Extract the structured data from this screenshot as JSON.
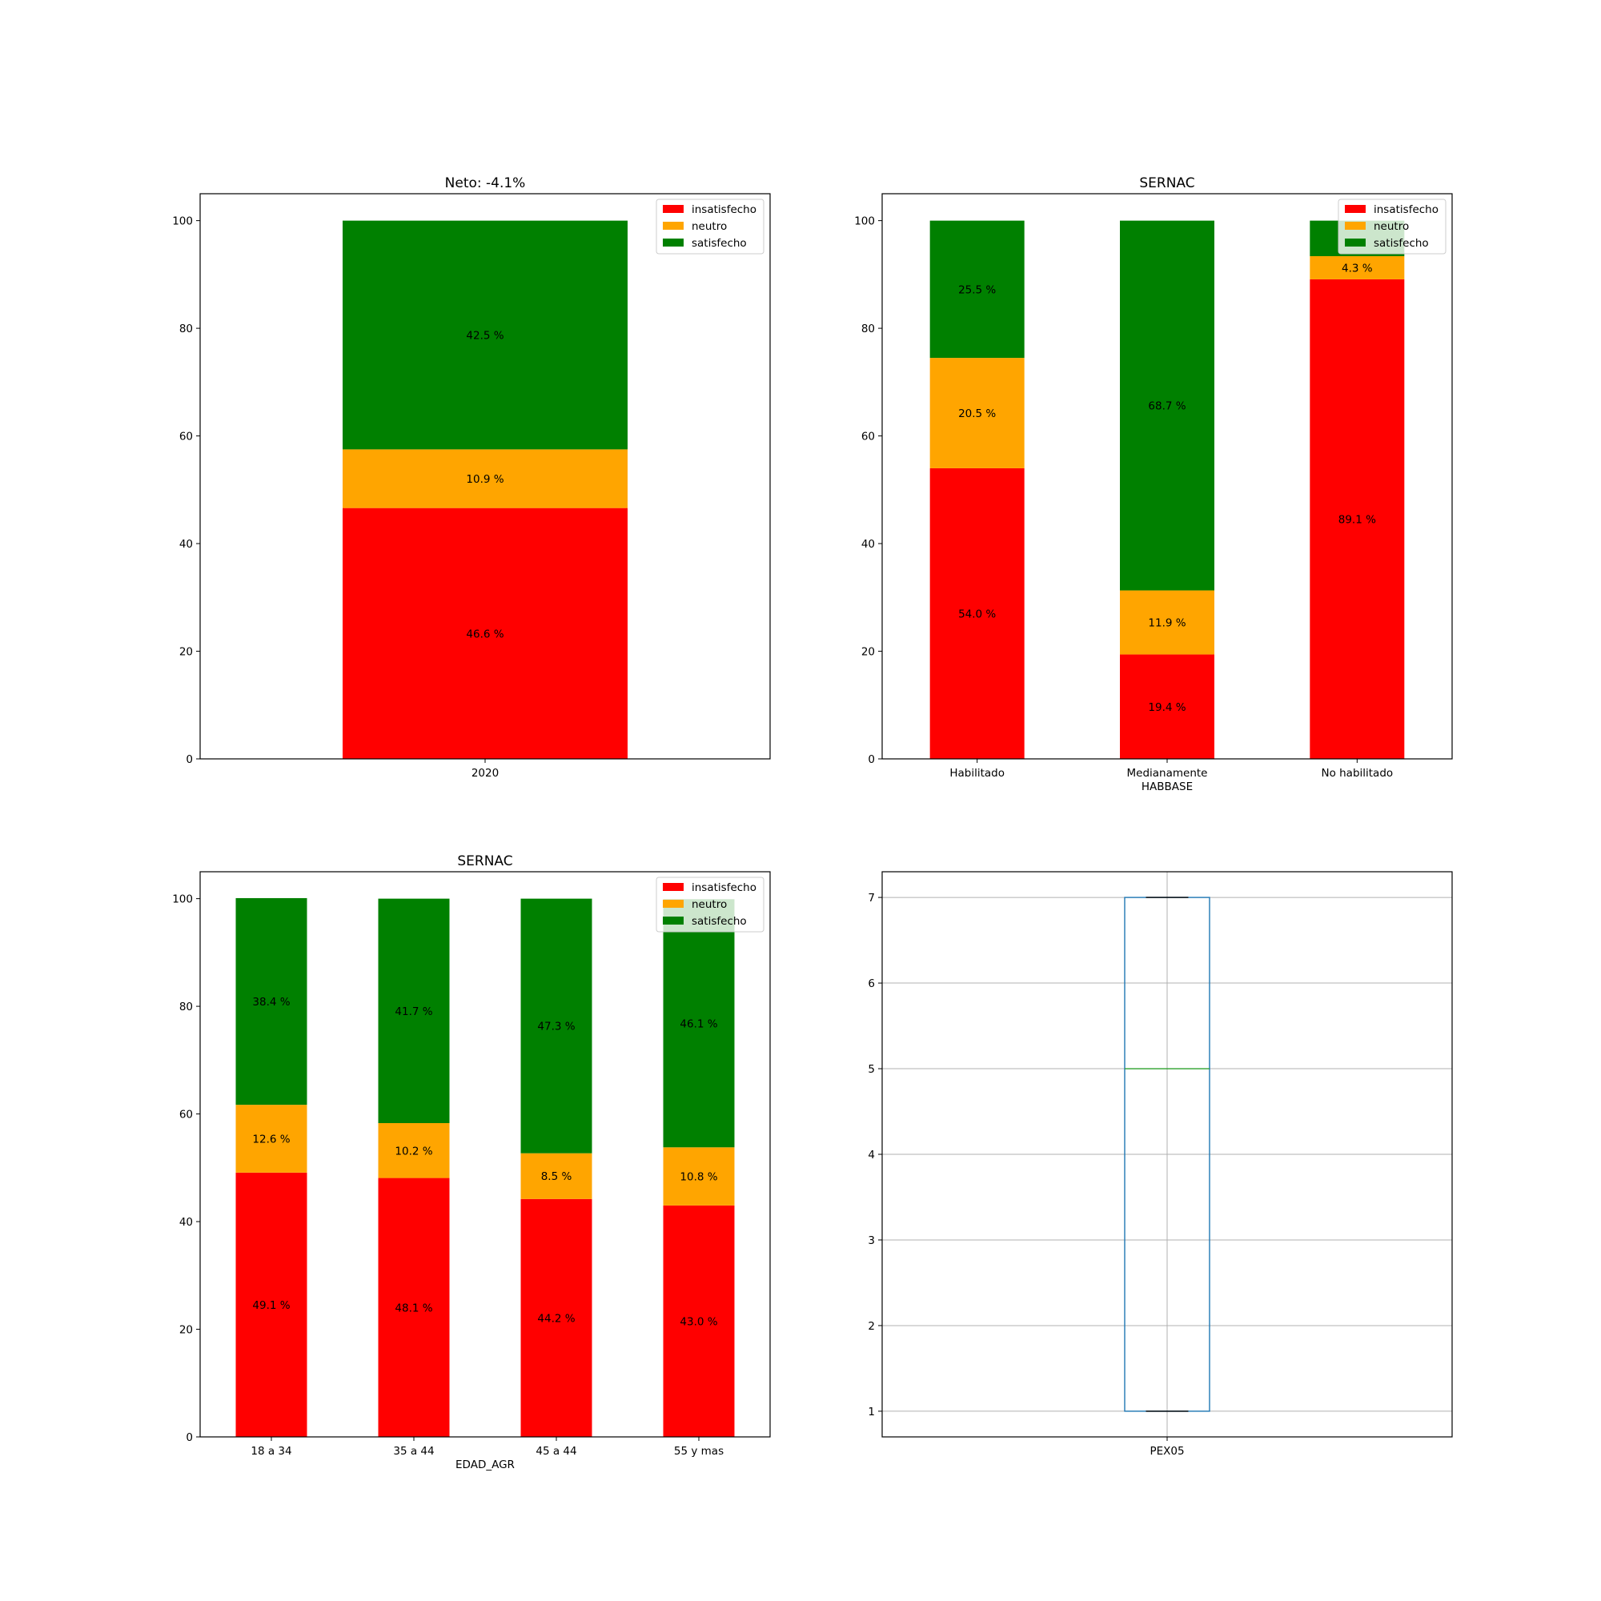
{
  "colors": {
    "insatisfecho": "#ff0000",
    "neutro": "#ffa500",
    "satisfecho": "#008000",
    "box": "#1f77b4",
    "median": "#2ca02c",
    "grid": "#b0b0b0"
  },
  "chart_data": [
    {
      "type": "bar",
      "stacked": true,
      "title": "Neto: -4.1%",
      "xlabel": "",
      "ylabel": "",
      "categories": [
        "2020"
      ],
      "series": [
        {
          "name": "insatisfecho",
          "values": [
            46.6
          ],
          "labels": [
            "46.6 %"
          ]
        },
        {
          "name": "neutro",
          "values": [
            10.9
          ],
          "labels": [
            "10.9 %"
          ]
        },
        {
          "name": "satisfecho",
          "values": [
            42.5
          ],
          "labels": [
            "42.5 %"
          ]
        }
      ],
      "ylim": [
        0,
        105
      ],
      "yticks": [
        "0",
        "20",
        "40",
        "60",
        "80",
        "100"
      ],
      "legend": "top-right",
      "grid": false
    },
    {
      "type": "bar",
      "stacked": true,
      "title": "SERNAC",
      "xlabel": "HABBASE",
      "ylabel": "",
      "categories": [
        "Habilitado",
        "Medianamente",
        "No habilitado"
      ],
      "series": [
        {
          "name": "insatisfecho",
          "values": [
            54.0,
            19.4,
            89.1
          ],
          "labels": [
            "54.0 %",
            "19.4 %",
            "89.1 %"
          ]
        },
        {
          "name": "neutro",
          "values": [
            20.5,
            11.9,
            4.3
          ],
          "labels": [
            "20.5 %",
            "11.9 %",
            "4.3 %"
          ]
        },
        {
          "name": "satisfecho",
          "values": [
            25.5,
            68.7,
            6.6
          ],
          "labels": [
            "25.5 %",
            "68.7 %",
            ""
          ]
        }
      ],
      "ylim": [
        0,
        105
      ],
      "yticks": [
        "0",
        "20",
        "40",
        "60",
        "80",
        "100"
      ],
      "legend": "top-right",
      "grid": false
    },
    {
      "type": "bar",
      "stacked": true,
      "title": "SERNAC",
      "xlabel": "EDAD_AGR",
      "ylabel": "",
      "categories": [
        "18 a 34",
        "35 a 44",
        "45 a 44",
        "55 y mas"
      ],
      "series": [
        {
          "name": "insatisfecho",
          "values": [
            49.1,
            48.1,
            44.2,
            43.0
          ],
          "labels": [
            "49.1 %",
            "48.1 %",
            "44.2 %",
            "43.0 %"
          ]
        },
        {
          "name": "neutro",
          "values": [
            12.6,
            10.2,
            8.5,
            10.8
          ],
          "labels": [
            "12.6 %",
            "10.2 %",
            "8.5 %",
            "10.8 %"
          ]
        },
        {
          "name": "satisfecho",
          "values": [
            38.4,
            41.7,
            47.3,
            46.1
          ],
          "labels": [
            "38.4 %",
            "41.7 %",
            "47.3 %",
            "46.1 %"
          ]
        }
      ],
      "ylim": [
        0,
        105
      ],
      "yticks": [
        "0",
        "20",
        "40",
        "60",
        "80",
        "100"
      ],
      "legend": "top-right",
      "grid": false
    },
    {
      "type": "box",
      "title": "",
      "xlabel": "",
      "categories": [
        "PEX05"
      ],
      "boxes": [
        {
          "name": "PEX05",
          "min": 1,
          "q1": 1,
          "median": 5,
          "q3": 7,
          "max": 7
        }
      ],
      "ylim": [
        0.7,
        7.3
      ],
      "yticks": [
        "1",
        "2",
        "3",
        "4",
        "5",
        "6",
        "7"
      ],
      "grid": true
    }
  ]
}
